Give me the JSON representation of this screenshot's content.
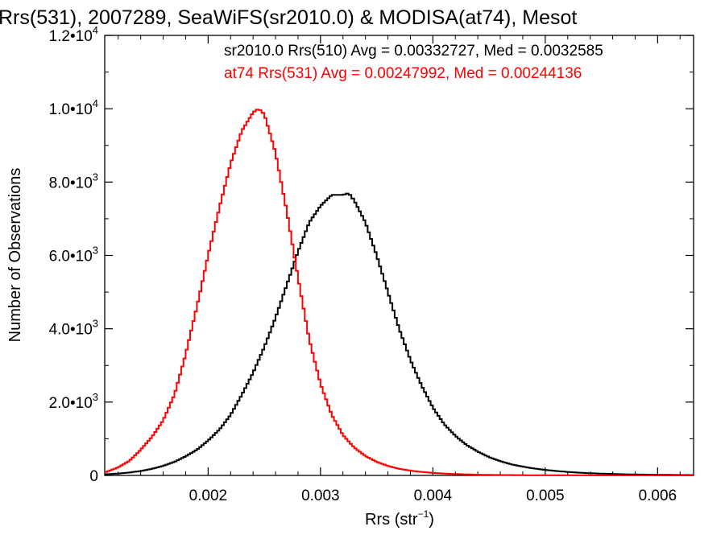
{
  "chart_data": {
    "type": "line",
    "title": "Rrs(531), 2007289, SeaWiFS(sr2010.0) & MODISA(at74), Mesot",
    "xlabel": "Rrs (str",
    "xlabel_sup": "−1",
    "xlabel_end": ")",
    "ylabel": "Number of Observations",
    "xlim": [
      0.00108,
      0.00632
    ],
    "ylim": [
      0,
      12000
    ],
    "grid": false,
    "x_ticks": [
      {
        "value": 0.002,
        "label": "0.002"
      },
      {
        "value": 0.003,
        "label": "0.003"
      },
      {
        "value": 0.004,
        "label": "0.004"
      },
      {
        "value": 0.005,
        "label": "0.005"
      },
      {
        "value": 0.006,
        "label": "0.006"
      }
    ],
    "y_ticks": [
      {
        "value": 0,
        "label": "0",
        "sup": ""
      },
      {
        "value": 2000,
        "label": "2.0•10",
        "sup": "3"
      },
      {
        "value": 4000,
        "label": "4.0•10",
        "sup": "3"
      },
      {
        "value": 6000,
        "label": "6.0•10",
        "sup": "3"
      },
      {
        "value": 8000,
        "label": "8.0•10",
        "sup": "3"
      },
      {
        "value": 10000,
        "label": "1.0•10",
        "sup": "4"
      },
      {
        "value": 12000,
        "label": "1.2•10",
        "sup": "4"
      }
    ],
    "annotations": [
      {
        "text": "sr2010.0 Rrs(510) Avg = 0.00332727, Med = 0.0032585",
        "color": "#000000"
      },
      {
        "text": "at74 Rrs(531) Avg = 0.00247992, Med = 0.00244136",
        "color": "#ff0000"
      }
    ],
    "series": [
      {
        "color": "#000000",
        "x": [
          0.00108,
          0.0012,
          0.0013,
          0.0014,
          0.0015,
          0.0016,
          0.0017,
          0.0018,
          0.0019,
          0.002,
          0.0021,
          0.0022,
          0.0023,
          0.0024,
          0.0025,
          0.0026,
          0.0027,
          0.0028,
          0.0029,
          0.003,
          0.0031,
          0.0032,
          0.00325,
          0.0033,
          0.0034,
          0.0035,
          0.0036,
          0.0037,
          0.0038,
          0.0039,
          0.004,
          0.0041,
          0.0042,
          0.0043,
          0.0044,
          0.0045,
          0.0046,
          0.0047,
          0.0048,
          0.0049,
          0.005,
          0.0051,
          0.0052,
          0.0053,
          0.0054,
          0.0055,
          0.0056,
          0.0057,
          0.0058,
          0.0059,
          0.006,
          0.0061,
          0.0062,
          0.00632
        ],
        "y": [
          30,
          50,
          80,
          120,
          180,
          260,
          370,
          520,
          700,
          950,
          1250,
          1650,
          2200,
          2800,
          3500,
          4300,
          5200,
          6100,
          6900,
          7350,
          7650,
          7650,
          7700,
          7500,
          6900,
          6000,
          5000,
          4000,
          3150,
          2450,
          1850,
          1400,
          1080,
          830,
          650,
          500,
          390,
          300,
          240,
          190,
          150,
          120,
          95,
          75,
          60,
          50,
          40,
          32,
          26,
          22,
          18,
          15,
          12,
          10
        ]
      },
      {
        "color": "#ff0000",
        "x": [
          0.00108,
          0.0012,
          0.0013,
          0.0014,
          0.0015,
          0.0016,
          0.0017,
          0.0018,
          0.0019,
          0.002,
          0.0021,
          0.0022,
          0.0023,
          0.0024,
          0.00245,
          0.0025,
          0.0026,
          0.0027,
          0.0028,
          0.0029,
          0.003,
          0.0031,
          0.0032,
          0.0033,
          0.0034,
          0.0035,
          0.0036,
          0.0037,
          0.0038,
          0.0039,
          0.004,
          0.0041,
          0.0042,
          0.0043,
          0.0044,
          0.0045,
          0.0046,
          0.0048,
          0.005,
          0.0052,
          0.0055,
          0.0058,
          0.006,
          0.00632
        ],
        "y": [
          80,
          220,
          400,
          700,
          1050,
          1500,
          2200,
          3300,
          4600,
          6000,
          7300,
          8500,
          9400,
          9900,
          10000,
          9850,
          8800,
          7200,
          5400,
          3700,
          2500,
          1650,
          1100,
          760,
          530,
          370,
          260,
          180,
          130,
          95,
          70,
          50,
          38,
          28,
          20,
          15,
          12,
          8,
          5,
          4,
          3,
          2,
          1,
          1
        ]
      }
    ]
  }
}
